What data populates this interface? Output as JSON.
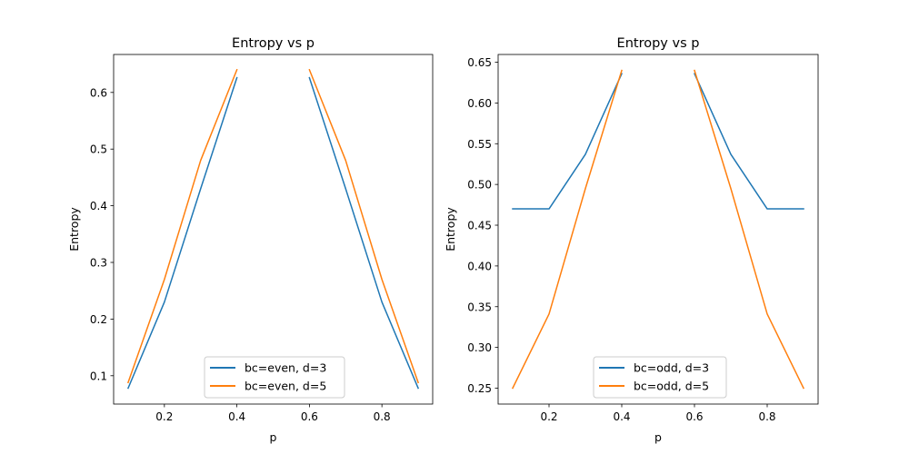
{
  "chart_data": [
    {
      "type": "line",
      "title": "Entropy vs p",
      "xlabel": "p",
      "ylabel": "Entropy",
      "xlim": [
        0.06,
        0.94
      ],
      "ylim": [
        0.05,
        0.667
      ],
      "xticks": [
        0.2,
        0.4,
        0.6,
        0.8
      ],
      "yticks": [
        0.1,
        0.2,
        0.3,
        0.4,
        0.5,
        0.6
      ],
      "tick_decimals": 1,
      "grid": false,
      "legend_position": "lower center",
      "series": [
        {
          "name": "bc=even, d=3",
          "color": "#1f77b4",
          "segments": [
            {
              "x": [
                0.1,
                0.2,
                0.3,
                0.4
              ],
              "y": [
                0.078,
                0.23,
                0.43,
                0.626
              ]
            },
            {
              "x": [
                0.6,
                0.7,
                0.8,
                0.9
              ],
              "y": [
                0.626,
                0.43,
                0.23,
                0.078
              ]
            }
          ]
        },
        {
          "name": "bc=even, d=5",
          "color": "#ff7f0e",
          "segments": [
            {
              "x": [
                0.1,
                0.2,
                0.3,
                0.4
              ],
              "y": [
                0.088,
                0.27,
                0.48,
                0.64
              ]
            },
            {
              "x": [
                0.6,
                0.7,
                0.8,
                0.9
              ],
              "y": [
                0.64,
                0.48,
                0.27,
                0.088
              ]
            }
          ]
        }
      ]
    },
    {
      "type": "line",
      "title": "Entropy vs p",
      "xlabel": "p",
      "ylabel": "Entropy",
      "xlim": [
        0.06,
        0.94
      ],
      "ylim": [
        0.2305,
        0.6595
      ],
      "xticks": [
        0.2,
        0.4,
        0.6,
        0.8
      ],
      "yticks": [
        0.25,
        0.3,
        0.35,
        0.4,
        0.45,
        0.5,
        0.55,
        0.6,
        0.65
      ],
      "tick_decimals": 2,
      "grid": false,
      "legend_position": "lower center",
      "series": [
        {
          "name": "bc=odd, d=3",
          "color": "#1f77b4",
          "segments": [
            {
              "x": [
                0.1,
                0.2,
                0.3,
                0.4
              ],
              "y": [
                0.47,
                0.47,
                0.537,
                0.636
              ]
            },
            {
              "x": [
                0.6,
                0.7,
                0.8,
                0.9
              ],
              "y": [
                0.636,
                0.537,
                0.47,
                0.47
              ]
            }
          ]
        },
        {
          "name": "bc=odd, d=5",
          "color": "#ff7f0e",
          "segments": [
            {
              "x": [
                0.1,
                0.2,
                0.3,
                0.4
              ],
              "y": [
                0.25,
                0.341,
                0.495,
                0.64
              ]
            },
            {
              "x": [
                0.6,
                0.7,
                0.8,
                0.9
              ],
              "y": [
                0.64,
                0.495,
                0.341,
                0.25
              ]
            }
          ]
        }
      ]
    }
  ]
}
